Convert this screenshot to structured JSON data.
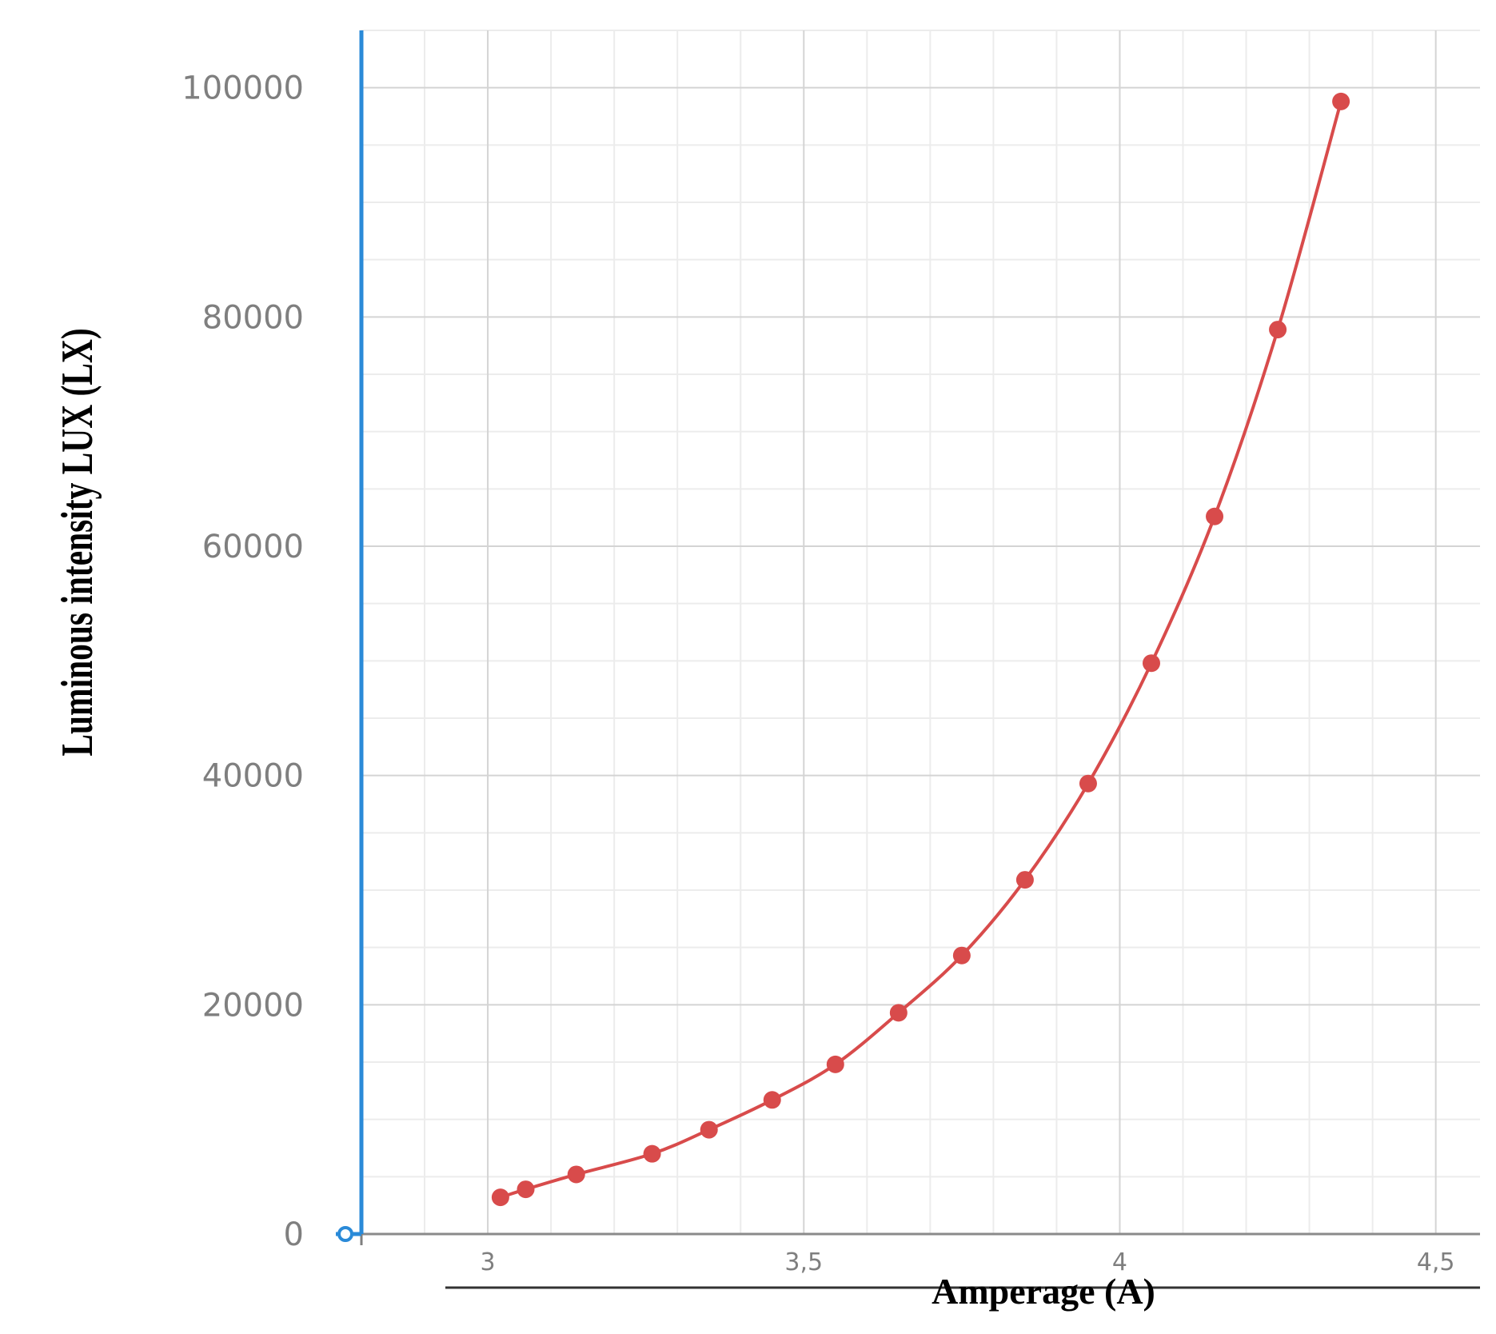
{
  "chart_data": {
    "type": "line",
    "title": "",
    "xlabel": "Amperage (A)",
    "ylabel": "Luminous intensity LUX (LX)",
    "xlim": [
      2.8,
      4.57
    ],
    "ylim": [
      0,
      105000
    ],
    "x_ticks": [
      3,
      3.5,
      4,
      4.5
    ],
    "x_tick_labels": [
      "3",
      "3,5",
      "4",
      "4,5"
    ],
    "y_ticks": [
      0,
      20000,
      40000,
      60000,
      80000,
      100000
    ],
    "y_tick_labels": [
      "0",
      "20000",
      "40000",
      "60000",
      "80000",
      "100000"
    ],
    "grid": true,
    "legend": "none",
    "colors": {
      "line": "#d84b4b",
      "marker": "#d84b4b",
      "y_axis": "#2a8ad8",
      "grid_major": "#d4d4d4",
      "grid_minor": "#ececec",
      "tick_text": "#7f7f7f"
    },
    "series": [
      {
        "x": [
          3.02,
          3.06,
          3.14,
          3.26,
          3.35,
          3.45,
          3.55,
          3.65,
          3.75,
          3.85,
          3.95,
          4.05,
          4.15,
          4.25,
          4.35
        ],
        "y": [
          3200,
          3900,
          5200,
          7000,
          9100,
          11700,
          14800,
          19300,
          24300,
          30900,
          39300,
          49800,
          62600,
          78900,
          98800
        ]
      }
    ]
  }
}
